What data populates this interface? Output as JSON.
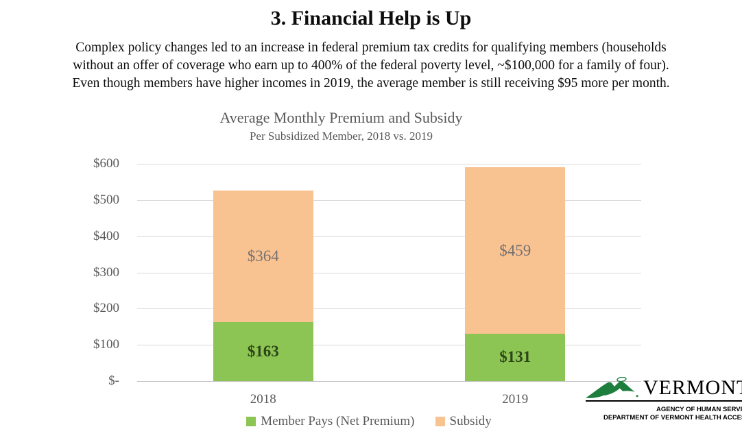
{
  "slide": {
    "title": "3. Financial Help is Up",
    "body_lines": [
      "Complex policy changes led to an increase in federal premium tax credits for qualifying members (households",
      "without an offer of coverage who earn up to 400% of the federal poverty level, ~$100,000 for a family of four).",
      "Even though members have higher incomes in 2019, the average member is still receiving $95 more per month."
    ]
  },
  "chart": {
    "title": "Average Monthly Premium and Subsidy",
    "subtitle": "Per Subsidized Member, 2018 vs. 2019"
  },
  "chart_data": {
    "type": "bar",
    "stacked": true,
    "title": "Average Monthly Premium and Subsidy",
    "subtitle": "Per Subsidized Member, 2018 vs. 2019",
    "categories": [
      "2018",
      "2019"
    ],
    "series": [
      {
        "name": "Member Pays (Net Premium)",
        "values": [
          163,
          131
        ],
        "labels": [
          "$163",
          "$131"
        ],
        "color": "#8dc554",
        "label_color": "#2c4617",
        "label_bold": true
      },
      {
        "name": "Subsidy",
        "values": [
          364,
          459
        ],
        "labels": [
          "$364",
          "$459"
        ],
        "color": "#f8c291",
        "label_color": "#767171",
        "label_bold": false
      }
    ],
    "totals": [
      527,
      590
    ],
    "ylim": [
      0,
      600
    ],
    "ytick_step": 100,
    "ytick_labels": [
      "$-",
      "$100",
      "$200",
      "$300",
      "$400",
      "$500",
      "$600"
    ],
    "grid": true,
    "legend_position": "bottom",
    "colors": {
      "gridline": "#d9d9d9",
      "axisline": "#bfbfbf",
      "axis_text": "#595959"
    }
  },
  "logo": {
    "name": "VERMONT",
    "tagline1": "AGENCY OF HUMAN SERVICE",
    "tagline2": "DEPARTMENT OF VERMONT HEALTH ACCES",
    "green": "#1e7e3e"
  }
}
